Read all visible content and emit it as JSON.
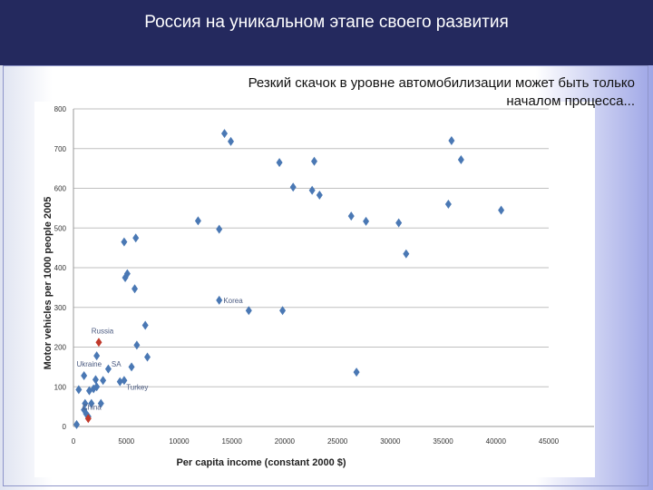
{
  "slide": {
    "title": "Россия на уникальном этапе своего развития",
    "subtitle_line1": "Резкий скачок в уровне автомобилизации может быть только",
    "subtitle_line2": "началом процесса..."
  },
  "colors": {
    "header": "#24295e",
    "point": "#4a78b4",
    "highlight": "#c0392b",
    "grid": "#bfbfbf"
  },
  "chart_data": {
    "type": "scatter",
    "xlabel": "Per capita income (constant 2000 $)",
    "ylabel": "Motor vehicles per 1000 people 2005",
    "xlim": [
      0,
      45000
    ],
    "ylim": [
      0,
      800
    ],
    "xticks": [
      0,
      5000,
      10000,
      15000,
      20000,
      25000,
      30000,
      35000,
      40000,
      45000
    ],
    "yticks": [
      0,
      100,
      200,
      300,
      400,
      500,
      600,
      700,
      800
    ],
    "grid": "horizontal",
    "points": [
      {
        "x": 14300,
        "y": 738
      },
      {
        "x": 14900,
        "y": 718
      },
      {
        "x": 35800,
        "y": 720
      },
      {
        "x": 36700,
        "y": 672
      },
      {
        "x": 19500,
        "y": 665
      },
      {
        "x": 22800,
        "y": 668
      },
      {
        "x": 20800,
        "y": 603
      },
      {
        "x": 22600,
        "y": 595
      },
      {
        "x": 23300,
        "y": 583
      },
      {
        "x": 35500,
        "y": 560
      },
      {
        "x": 40500,
        "y": 545
      },
      {
        "x": 26300,
        "y": 530
      },
      {
        "x": 27700,
        "y": 517
      },
      {
        "x": 30800,
        "y": 513
      },
      {
        "x": 11800,
        "y": 518
      },
      {
        "x": 13800,
        "y": 497
      },
      {
        "x": 5900,
        "y": 475
      },
      {
        "x": 4800,
        "y": 465
      },
      {
        "x": 31500,
        "y": 435
      },
      {
        "x": 5100,
        "y": 385
      },
      {
        "x": 4900,
        "y": 375
      },
      {
        "x": 5800,
        "y": 347
      },
      {
        "x": 13800,
        "y": 318
      },
      {
        "x": 16600,
        "y": 292
      },
      {
        "x": 19800,
        "y": 292
      },
      {
        "x": 6800,
        "y": 255
      },
      {
        "x": 6000,
        "y": 205
      },
      {
        "x": 7000,
        "y": 175
      },
      {
        "x": 2200,
        "y": 178
      },
      {
        "x": 3300,
        "y": 145
      },
      {
        "x": 5500,
        "y": 150
      },
      {
        "x": 26800,
        "y": 137
      },
      {
        "x": 1000,
        "y": 128
      },
      {
        "x": 2100,
        "y": 118
      },
      {
        "x": 2800,
        "y": 116
      },
      {
        "x": 4400,
        "y": 113
      },
      {
        "x": 4800,
        "y": 116
      },
      {
        "x": 500,
        "y": 93
      },
      {
        "x": 1500,
        "y": 90
      },
      {
        "x": 1900,
        "y": 95
      },
      {
        "x": 2200,
        "y": 100
      },
      {
        "x": 1100,
        "y": 58
      },
      {
        "x": 1700,
        "y": 58
      },
      {
        "x": 2600,
        "y": 58
      },
      {
        "x": 1000,
        "y": 42
      },
      {
        "x": 1200,
        "y": 32
      },
      {
        "x": 1400,
        "y": 25
      },
      {
        "x": 300,
        "y": 5
      }
    ],
    "highlighted": [
      {
        "label": "Russia",
        "x": 2400,
        "y": 212
      },
      {
        "label": "China",
        "x": 1400,
        "y": 20
      }
    ],
    "annotations": [
      {
        "text": "Korea",
        "x": 14200,
        "y": 318
      },
      {
        "text": "Ukraine",
        "x": 300,
        "y": 158
      },
      {
        "text": "SA",
        "x": 3600,
        "y": 158
      },
      {
        "text": "Turkey",
        "x": 5000,
        "y": 100
      }
    ]
  }
}
